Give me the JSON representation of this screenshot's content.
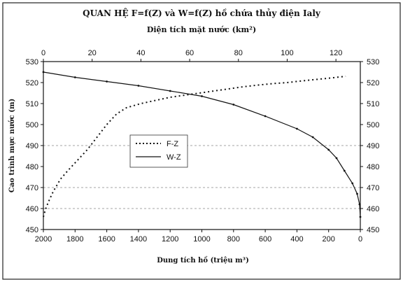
{
  "chart_data": {
    "type": "line",
    "title": "QUAN HỆ F=f(Z) và W=f(Z) hồ chứa thủy điện Ialy",
    "top_axis_label": "Diện tích mặt nước (km²)",
    "bottom_axis_label": "Dung tích hồ (triệu m³)",
    "left_axis_label": "Cao trình mực nước (m)",
    "top_axis": {
      "range": [
        0,
        130
      ],
      "ticks": [
        "0",
        "20",
        "40",
        "60",
        "80",
        "100",
        "120"
      ]
    },
    "bottom_axis": {
      "range": [
        2000,
        0
      ],
      "reversed": true,
      "ticks": [
        "2000",
        "1800",
        "1600",
        "1400",
        "1200",
        "1000",
        "800",
        "600",
        "400",
        "200",
        "0"
      ]
    },
    "y_axis": {
      "range": [
        450,
        530
      ],
      "ticks": [
        "450",
        "460",
        "470",
        "480",
        "490",
        "500",
        "510",
        "520",
        "530"
      ]
    },
    "right_axis": {
      "ticks": [
        "450",
        "460",
        "470",
        "480",
        "490",
        "500",
        "510",
        "520",
        "530"
      ]
    },
    "grid": "horizontal dotted at 460, 470, 490",
    "legend_position": "left-center",
    "series": [
      {
        "name": "F-Z",
        "axis": "top",
        "style": "dotted",
        "points": [
          [
            0,
            456
          ],
          [
            0.5,
            458
          ],
          [
            1,
            460
          ],
          [
            2,
            463
          ],
          [
            4,
            468
          ],
          [
            7,
            474
          ],
          [
            10,
            478
          ],
          [
            14,
            483
          ],
          [
            18,
            488
          ],
          [
            22,
            494
          ],
          [
            26,
            500
          ],
          [
            30,
            505
          ],
          [
            34,
            508
          ],
          [
            40,
            510
          ],
          [
            46,
            511.5
          ],
          [
            52,
            513
          ],
          [
            58,
            514
          ],
          [
            64,
            515
          ],
          [
            70,
            516
          ],
          [
            76,
            517
          ],
          [
            82,
            518
          ],
          [
            88,
            518.8
          ],
          [
            94,
            519.5
          ],
          [
            100,
            520
          ],
          [
            106,
            520.8
          ],
          [
            112,
            521.5
          ],
          [
            118,
            522.2
          ],
          [
            124,
            523
          ]
        ]
      },
      {
        "name": "W-Z",
        "axis": "bottom",
        "style": "solid",
        "points": [
          [
            2000,
            525
          ],
          [
            1800,
            522.5
          ],
          [
            1600,
            520.5
          ],
          [
            1400,
            518.5
          ],
          [
            1200,
            516
          ],
          [
            1000,
            513.5
          ],
          [
            800,
            509.5
          ],
          [
            600,
            504
          ],
          [
            400,
            498
          ],
          [
            300,
            494
          ],
          [
            200,
            488
          ],
          [
            150,
            484
          ],
          [
            100,
            478
          ],
          [
            50,
            472
          ],
          [
            20,
            467
          ],
          [
            5,
            462
          ],
          [
            0,
            456
          ]
        ]
      }
    ]
  }
}
